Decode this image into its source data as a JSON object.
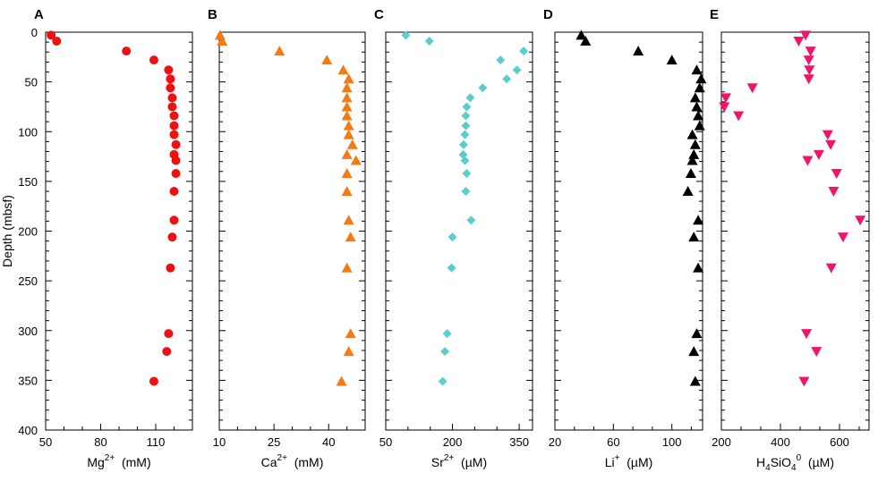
{
  "y_axis": {
    "label": "Depth (mbsf)",
    "range": [
      0,
      400
    ],
    "ticks": [
      0,
      50,
      100,
      150,
      200,
      250,
      300,
      350,
      400
    ]
  },
  "chart_data": [
    {
      "type": "scatter",
      "panel": "A",
      "xlabel_base": "Mg",
      "xlabel_sup": "2+",
      "xlabel_unit": "(mM)",
      "xlim": [
        50,
        130
      ],
      "xticks": [
        50,
        80,
        110
      ],
      "marker": "circle",
      "color": "#ee1111",
      "points": [
        {
          "x": 53,
          "y": 3
        },
        {
          "x": 56,
          "y": 9
        },
        {
          "x": 94,
          "y": 19
        },
        {
          "x": 109,
          "y": 28
        },
        {
          "x": 117,
          "y": 38
        },
        {
          "x": 118,
          "y": 47
        },
        {
          "x": 118,
          "y": 56
        },
        {
          "x": 119,
          "y": 66
        },
        {
          "x": 119,
          "y": 75
        },
        {
          "x": 120,
          "y": 84
        },
        {
          "x": 120,
          "y": 94
        },
        {
          "x": 120,
          "y": 103
        },
        {
          "x": 121,
          "y": 113
        },
        {
          "x": 120,
          "y": 123
        },
        {
          "x": 121,
          "y": 129
        },
        {
          "x": 121,
          "y": 142
        },
        {
          "x": 120,
          "y": 160
        },
        {
          "x": 120,
          "y": 189
        },
        {
          "x": 119,
          "y": 206
        },
        {
          "x": 118,
          "y": 237
        },
        {
          "x": 117,
          "y": 303
        },
        {
          "x": 116,
          "y": 321
        },
        {
          "x": 109,
          "y": 351
        }
      ]
    },
    {
      "type": "scatter",
      "panel": "B",
      "xlabel_base": "Ca",
      "xlabel_sup": "2+",
      "xlabel_unit": "(mM)",
      "xlim": [
        10,
        50
      ],
      "xticks": [
        10,
        25,
        40
      ],
      "marker": "triangle-up",
      "color": "#f47a16",
      "points": [
        {
          "x": 10.2,
          "y": 3
        },
        {
          "x": 10.8,
          "y": 9
        },
        {
          "x": 26.5,
          "y": 19
        },
        {
          "x": 39.5,
          "y": 28
        },
        {
          "x": 44,
          "y": 38
        },
        {
          "x": 45.5,
          "y": 47
        },
        {
          "x": 45,
          "y": 56
        },
        {
          "x": 45,
          "y": 66
        },
        {
          "x": 45,
          "y": 75
        },
        {
          "x": 45,
          "y": 84
        },
        {
          "x": 45.5,
          "y": 94
        },
        {
          "x": 45.5,
          "y": 103
        },
        {
          "x": 46.5,
          "y": 113
        },
        {
          "x": 45,
          "y": 123
        },
        {
          "x": 47.5,
          "y": 129
        },
        {
          "x": 45,
          "y": 142
        },
        {
          "x": 45,
          "y": 160
        },
        {
          "x": 45.5,
          "y": 189
        },
        {
          "x": 46,
          "y": 206
        },
        {
          "x": 45,
          "y": 237
        },
        {
          "x": 46,
          "y": 303
        },
        {
          "x": 45.5,
          "y": 321
        },
        {
          "x": 43.5,
          "y": 351
        }
      ]
    },
    {
      "type": "scatter",
      "panel": "C",
      "xlabel_base": "Sr",
      "xlabel_sup": "2+",
      "xlabel_unit": "(µM)",
      "xlim": [
        50,
        380
      ],
      "xticks": [
        50,
        200,
        350
      ],
      "marker": "diamond",
      "color": "#5fcccc",
      "points": [
        {
          "x": 95,
          "y": 3
        },
        {
          "x": 148,
          "y": 9
        },
        {
          "x": 360,
          "y": 19
        },
        {
          "x": 308,
          "y": 28
        },
        {
          "x": 345,
          "y": 38
        },
        {
          "x": 322,
          "y": 47
        },
        {
          "x": 268,
          "y": 56
        },
        {
          "x": 240,
          "y": 66
        },
        {
          "x": 232,
          "y": 75
        },
        {
          "x": 230,
          "y": 84
        },
        {
          "x": 230,
          "y": 94
        },
        {
          "x": 228,
          "y": 103
        },
        {
          "x": 225,
          "y": 113
        },
        {
          "x": 224,
          "y": 123
        },
        {
          "x": 228,
          "y": 129
        },
        {
          "x": 232,
          "y": 142
        },
        {
          "x": 230,
          "y": 160
        },
        {
          "x": 242,
          "y": 189
        },
        {
          "x": 200,
          "y": 206
        },
        {
          "x": 198,
          "y": 237
        },
        {
          "x": 188,
          "y": 303
        },
        {
          "x": 183,
          "y": 321
        },
        {
          "x": 178,
          "y": 351
        }
      ]
    },
    {
      "type": "scatter",
      "panel": "D",
      "xlabel_base": "Li",
      "xlabel_sup": "+",
      "xlabel_unit": "(µM)",
      "xlim": [
        20,
        121
      ],
      "xticks": [
        20,
        60,
        100
      ],
      "marker": "triangle-up",
      "color": "#000000",
      "points": [
        {
          "x": 38,
          "y": 3
        },
        {
          "x": 41,
          "y": 9
        },
        {
          "x": 77,
          "y": 19
        },
        {
          "x": 100,
          "y": 28
        },
        {
          "x": 117,
          "y": 38
        },
        {
          "x": 120,
          "y": 47
        },
        {
          "x": 119,
          "y": 56
        },
        {
          "x": 116,
          "y": 66
        },
        {
          "x": 117,
          "y": 75
        },
        {
          "x": 118,
          "y": 84
        },
        {
          "x": 119,
          "y": 94
        },
        {
          "x": 114,
          "y": 103
        },
        {
          "x": 116,
          "y": 113
        },
        {
          "x": 115,
          "y": 123
        },
        {
          "x": 114,
          "y": 129
        },
        {
          "x": 113,
          "y": 142
        },
        {
          "x": 111,
          "y": 160
        },
        {
          "x": 118,
          "y": 189
        },
        {
          "x": 115,
          "y": 206
        },
        {
          "x": 118,
          "y": 237
        },
        {
          "x": 117,
          "y": 303
        },
        {
          "x": 115,
          "y": 321
        },
        {
          "x": 116,
          "y": 351
        }
      ]
    },
    {
      "type": "scatter",
      "panel": "E",
      "xlabel_base": "H",
      "xlabel_sub1": "4",
      "xlabel_mid": "SiO",
      "xlabel_sub2": "4",
      "xlabel_sup": "0",
      "xlabel_unit": "(µM)",
      "xlim": [
        200,
        700
      ],
      "xticks": [
        200,
        400,
        600
      ],
      "marker": "triangle-down",
      "color": "#f0146a",
      "points": [
        {
          "x": 485,
          "y": 3
        },
        {
          "x": 462,
          "y": 9
        },
        {
          "x": 502,
          "y": 19
        },
        {
          "x": 496,
          "y": 28
        },
        {
          "x": 498,
          "y": 38
        },
        {
          "x": 496,
          "y": 47
        },
        {
          "x": 305,
          "y": 56
        },
        {
          "x": 215,
          "y": 66
        },
        {
          "x": 210,
          "y": 75
        },
        {
          "x": 258,
          "y": 84
        },
        {
          "x": 560,
          "y": 103
        },
        {
          "x": 570,
          "y": 113
        },
        {
          "x": 530,
          "y": 123
        },
        {
          "x": 492,
          "y": 129
        },
        {
          "x": 590,
          "y": 142
        },
        {
          "x": 580,
          "y": 160
        },
        {
          "x": 670,
          "y": 189
        },
        {
          "x": 612,
          "y": 206
        },
        {
          "x": 572,
          "y": 237
        },
        {
          "x": 488,
          "y": 303
        },
        {
          "x": 522,
          "y": 321
        },
        {
          "x": 480,
          "y": 351
        }
      ]
    }
  ]
}
